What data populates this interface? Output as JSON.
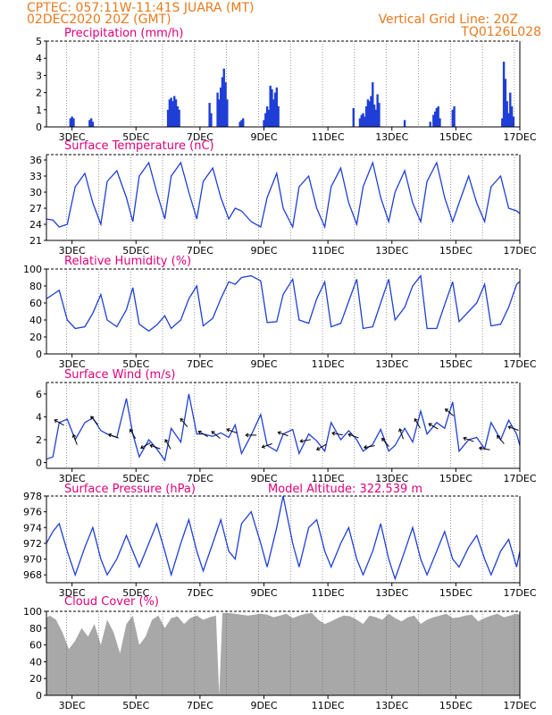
{
  "header": {
    "line1_left": "CPTEC:   057:11W-11:41S   JUARA (MT)",
    "line2_left": "02DEC2020  20Z (GMT)",
    "line1_right": "Vertical Grid Line: 20Z",
    "line2_right": "TQ0126L028"
  },
  "colors": {
    "header": "#e87a1e",
    "title": "#e0007a",
    "line": "#1f3fd6",
    "bar": "#1f3fd6",
    "cloud": "#a8a8a8",
    "arrow": "#000000"
  },
  "chart_data": [
    {
      "id": "precip",
      "type": "bar",
      "title": "Precipitation  (mm/h)",
      "x_unit": "day of Dec 2020",
      "xlim": [
        2.2,
        17.0
      ],
      "ylim": [
        0,
        5
      ],
      "yticks": [
        0,
        1,
        2,
        3,
        4,
        5
      ],
      "grid": "vertical dotted at 20Z",
      "x": [
        2.95,
        3.0,
        3.05,
        3.55,
        3.6,
        3.65,
        6.0,
        6.05,
        6.1,
        6.15,
        6.2,
        6.25,
        6.3,
        6.35,
        7.3,
        7.35,
        7.55,
        7.6,
        7.65,
        7.7,
        7.75,
        7.8,
        7.85,
        8.25,
        8.3,
        8.35,
        9.0,
        9.05,
        9.1,
        9.15,
        9.2,
        9.25,
        9.3,
        9.35,
        9.4,
        9.45,
        11.8,
        12.0,
        12.05,
        12.1,
        12.15,
        12.2,
        12.25,
        12.3,
        12.35,
        12.4,
        12.45,
        12.5,
        12.55,
        12.6,
        13.4,
        14.2,
        14.3,
        14.35,
        14.4,
        14.45,
        14.5,
        14.9,
        14.95,
        16.45,
        16.5,
        16.55,
        16.6,
        16.65,
        16.7,
        16.75,
        16.8
      ],
      "values": [
        0.5,
        0.6,
        0.5,
        0.4,
        0.5,
        0.3,
        1.0,
        1.6,
        1.7,
        1.5,
        1.8,
        1.6,
        1.2,
        1.0,
        1.4,
        0.8,
        2.0,
        1.6,
        2.3,
        2.9,
        3.4,
        2.6,
        1.6,
        0.3,
        0.4,
        0.5,
        0.4,
        0.8,
        1.2,
        1.0,
        2.4,
        2.2,
        1.6,
        2.0,
        2.3,
        1.2,
        1.1,
        0.5,
        0.7,
        0.8,
        0.6,
        1.2,
        1.6,
        1.5,
        1.8,
        2.6,
        1.3,
        1.0,
        1.9,
        1.4,
        0.4,
        0.3,
        0.7,
        0.9,
        1.1,
        1.2,
        0.5,
        1.0,
        1.2,
        0.5,
        3.8,
        2.8,
        1.5,
        0.8,
        2.0,
        1.2,
        0.6
      ]
    },
    {
      "id": "temp",
      "type": "line",
      "title": "Surface Temperature (nC)",
      "x_unit": "day of Dec 2020",
      "xlim": [
        2.2,
        17.0
      ],
      "ylim": [
        21,
        37
      ],
      "yticks": [
        21,
        24,
        27,
        30,
        33,
        36
      ],
      "x": [
        2.2,
        2.4,
        2.6,
        2.85,
        3.1,
        3.4,
        3.65,
        3.9,
        4.1,
        4.4,
        4.7,
        4.9,
        5.1,
        5.4,
        5.65,
        5.9,
        6.1,
        6.4,
        6.65,
        6.9,
        7.1,
        7.4,
        7.65,
        7.9,
        8.1,
        8.3,
        8.6,
        8.9,
        9.1,
        9.4,
        9.6,
        9.9,
        10.1,
        10.4,
        10.65,
        10.9,
        11.1,
        11.4,
        11.65,
        11.9,
        12.1,
        12.4,
        12.65,
        12.9,
        13.1,
        13.4,
        13.65,
        13.9,
        14.1,
        14.4,
        14.65,
        14.9,
        15.1,
        15.4,
        15.65,
        15.9,
        16.1,
        16.4,
        16.65,
        16.9,
        17.0
      ],
      "values": [
        25,
        24.8,
        23.5,
        24,
        31,
        33.5,
        28,
        24,
        32,
        34,
        29,
        24.5,
        33,
        35.5,
        30,
        25,
        33,
        35.5,
        30,
        25,
        32,
        34.5,
        29,
        25,
        27,
        26.5,
        24.5,
        23.5,
        29,
        33.5,
        27,
        23.5,
        31,
        33,
        27,
        23.5,
        31,
        34.5,
        28,
        24,
        31,
        35.5,
        29,
        24.5,
        30,
        34,
        28,
        24.5,
        32,
        35.5,
        29,
        24.5,
        28,
        33,
        28,
        24.5,
        31,
        33,
        27,
        26.5,
        26
      ]
    },
    {
      "id": "rh",
      "type": "line",
      "title": "Relative Humidity (%)",
      "x_unit": "day of Dec 2020",
      "xlim": [
        2.2,
        17.0
      ],
      "ylim": [
        0,
        100
      ],
      "yticks": [
        0,
        20,
        40,
        60,
        80,
        100
      ],
      "x": [
        2.2,
        2.4,
        2.6,
        2.85,
        3.1,
        3.4,
        3.65,
        3.9,
        4.1,
        4.4,
        4.7,
        4.9,
        5.1,
        5.4,
        5.65,
        5.9,
        6.1,
        6.4,
        6.65,
        6.9,
        7.1,
        7.4,
        7.65,
        7.9,
        8.1,
        8.3,
        8.6,
        8.9,
        9.1,
        9.4,
        9.6,
        9.9,
        10.1,
        10.4,
        10.65,
        10.9,
        11.1,
        11.4,
        11.65,
        11.9,
        12.1,
        12.4,
        12.65,
        12.9,
        13.1,
        13.4,
        13.65,
        13.9,
        14.1,
        14.4,
        14.65,
        14.9,
        15.1,
        15.4,
        15.65,
        15.9,
        16.1,
        16.4,
        16.65,
        16.9,
        17.0
      ],
      "values": [
        65,
        70,
        75,
        40,
        30,
        32,
        48,
        70,
        40,
        32,
        52,
        78,
        35,
        27,
        34,
        45,
        30,
        40,
        65,
        80,
        33,
        42,
        65,
        85,
        82,
        90,
        92,
        86,
        37,
        38,
        70,
        88,
        40,
        36,
        65,
        85,
        32,
        36,
        62,
        88,
        30,
        32,
        60,
        88,
        40,
        55,
        80,
        92,
        30,
        30,
        58,
        85,
        38,
        50,
        60,
        82,
        33,
        35,
        55,
        82,
        85
      ]
    },
    {
      "id": "wind",
      "type": "line",
      "title": "Surface Wind (m/s)",
      "x_unit": "day of Dec 2020",
      "xlim": [
        2.2,
        17.0
      ],
      "ylim": [
        -0.5,
        7
      ],
      "yticks": [
        0,
        2,
        4,
        6
      ],
      "x": [
        2.2,
        2.4,
        2.6,
        2.85,
        3.1,
        3.4,
        3.65,
        3.9,
        4.1,
        4.4,
        4.7,
        4.9,
        5.1,
        5.4,
        5.65,
        5.9,
        6.1,
        6.4,
        6.65,
        6.9,
        7.1,
        7.4,
        7.65,
        7.9,
        8.1,
        8.3,
        8.6,
        8.9,
        9.1,
        9.4,
        9.6,
        9.9,
        10.1,
        10.4,
        10.65,
        10.9,
        11.1,
        11.4,
        11.65,
        11.9,
        12.1,
        12.4,
        12.65,
        12.9,
        13.1,
        13.4,
        13.65,
        13.9,
        14.1,
        14.4,
        14.65,
        14.9,
        15.1,
        15.4,
        15.65,
        15.9,
        16.1,
        16.4,
        16.65,
        16.9,
        17.0
      ],
      "values": [
        0.3,
        0.5,
        3.5,
        3.8,
        2.0,
        3.5,
        3.9,
        2.8,
        2.5,
        2.2,
        5.6,
        2.5,
        0.5,
        2.0,
        1.2,
        0.2,
        3.0,
        1.8,
        6.0,
        2.5,
        2.5,
        2.3,
        2.6,
        2.2,
        3.3,
        0.8,
        2.4,
        4.2,
        1.5,
        1.0,
        2.5,
        2.9,
        0.8,
        2.5,
        1.9,
        1.0,
        3.5,
        2.0,
        2.8,
        2.0,
        1.0,
        1.6,
        2.9,
        1.0,
        1.5,
        3.0,
        1.8,
        4.5,
        2.5,
        3.5,
        3.0,
        5.3,
        1.0,
        2.0,
        2.2,
        1.2,
        3.5,
        2.0,
        3.7,
        2.5,
        1.5
      ],
      "arrow_x": [
        2.6,
        3.1,
        3.7,
        4.3,
        4.9,
        5.3,
        5.6,
        6.0,
        6.5,
        7.1,
        7.5,
        8.0,
        8.6,
        9.1,
        9.6,
        10.3,
        10.8,
        11.3,
        11.8,
        12.3,
        12.8,
        13.3,
        13.8,
        14.3,
        14.8,
        15.4,
        15.9,
        16.4,
        16.8
      ],
      "arrow_dir_deg": [
        210,
        250,
        230,
        200,
        240,
        150,
        200,
        240,
        230,
        210,
        220,
        200,
        180,
        160,
        200,
        170,
        150,
        190,
        200,
        170,
        230,
        250,
        240,
        210,
        220,
        200,
        190,
        230,
        200
      ]
    },
    {
      "id": "pres",
      "type": "line",
      "title": "Surface Pressure (hPa)",
      "annotation": "Model Altitude: 322.539  m",
      "x_unit": "day of Dec 2020",
      "xlim": [
        2.2,
        17.0
      ],
      "ylim": [
        967,
        978
      ],
      "yticks": [
        968,
        970,
        972,
        974,
        976,
        978
      ],
      "x": [
        2.2,
        2.4,
        2.6,
        2.85,
        3.1,
        3.4,
        3.65,
        3.9,
        4.1,
        4.4,
        4.7,
        4.9,
        5.1,
        5.4,
        5.65,
        5.9,
        6.1,
        6.4,
        6.65,
        6.9,
        7.1,
        7.4,
        7.65,
        7.9,
        8.1,
        8.3,
        8.6,
        8.9,
        9.1,
        9.4,
        9.6,
        9.9,
        10.1,
        10.4,
        10.65,
        10.9,
        11.1,
        11.4,
        11.65,
        11.9,
        12.1,
        12.4,
        12.65,
        12.9,
        13.1,
        13.4,
        13.65,
        13.9,
        14.1,
        14.4,
        14.65,
        14.9,
        15.1,
        15.4,
        15.65,
        15.9,
        16.1,
        16.4,
        16.65,
        16.9,
        17.0
      ],
      "values": [
        972,
        973.5,
        974.5,
        971,
        968,
        971.5,
        974,
        970,
        968,
        970,
        973,
        971,
        969,
        972,
        974.5,
        971,
        968,
        972,
        975,
        971,
        968.5,
        972,
        975,
        971,
        970,
        974.5,
        976,
        972,
        969,
        974,
        978,
        972,
        969,
        974,
        975,
        971,
        969,
        972,
        974,
        970,
        968,
        971,
        974.5,
        970,
        967.5,
        971,
        974,
        970,
        968,
        971,
        973.5,
        970,
        969,
        971.5,
        973,
        970,
        968,
        971,
        972.5,
        969,
        971
      ]
    },
    {
      "id": "cloud",
      "type": "area",
      "title": "Cloud Cover (%)",
      "x_unit": "day of Dec 2020",
      "xlim": [
        2.2,
        17.0
      ],
      "ylim": [
        0,
        100
      ],
      "yticks": [
        0,
        20,
        40,
        60,
        80,
        100
      ],
      "x": [
        2.2,
        2.3,
        2.5,
        2.7,
        2.9,
        3.1,
        3.3,
        3.5,
        3.7,
        3.9,
        4.1,
        4.3,
        4.5,
        4.7,
        4.9,
        5.1,
        5.3,
        5.5,
        5.7,
        5.9,
        6.1,
        6.3,
        6.5,
        6.7,
        6.9,
        7.1,
        7.3,
        7.5,
        7.6,
        7.7,
        7.9,
        8.1,
        8.3,
        8.5,
        8.7,
        8.9,
        9.1,
        9.3,
        9.5,
        9.7,
        9.9,
        10.1,
        10.3,
        10.5,
        10.7,
        10.9,
        11.1,
        11.3,
        11.5,
        11.7,
        11.9,
        12.1,
        12.3,
        12.5,
        12.7,
        12.9,
        13.1,
        13.3,
        13.5,
        13.7,
        13.9,
        14.1,
        14.3,
        14.5,
        14.7,
        14.9,
        15.1,
        15.3,
        15.5,
        15.7,
        15.9,
        16.1,
        16.3,
        16.5,
        16.7,
        16.9,
        17.0
      ],
      "values": [
        92,
        95,
        90,
        75,
        55,
        65,
        80,
        70,
        85,
        60,
        90,
        75,
        50,
        85,
        95,
        60,
        70,
        90,
        95,
        80,
        92,
        94,
        85,
        92,
        95,
        90,
        93,
        95,
        0,
        98,
        98,
        97,
        96,
        95,
        96,
        97,
        96,
        93,
        95,
        97,
        92,
        95,
        97,
        98,
        90,
        85,
        88,
        92,
        95,
        94,
        90,
        85,
        95,
        93,
        90,
        97,
        92,
        88,
        93,
        95,
        85,
        90,
        93,
        95,
        97,
        92,
        93,
        95,
        96,
        88,
        92,
        95,
        97,
        93,
        95,
        97,
        96
      ]
    }
  ],
  "panels": [
    {
      "title": "Precipitation  (mm/h)",
      "yticks": [
        "0",
        "1",
        "2",
        "3",
        "4",
        "5"
      ]
    },
    {
      "title": "Surface Temperature (nC)",
      "yticks": [
        "21",
        "24",
        "27",
        "30",
        "33",
        "36"
      ]
    },
    {
      "title": "Relative Humidity (%)",
      "yticks": [
        "0",
        "20",
        "40",
        "60",
        "80",
        "100"
      ]
    },
    {
      "title": "Surface Wind (m/s)",
      "yticks": [
        "0",
        "2",
        "4",
        "6"
      ]
    },
    {
      "title": "Surface Pressure (hPa)",
      "annotation": "Model Altitude: 322.539  m",
      "yticks": [
        "968",
        "970",
        "972",
        "974",
        "976",
        "978"
      ]
    },
    {
      "title": "Cloud Cover (%)",
      "yticks": [
        "0",
        "20",
        "40",
        "60",
        "80",
        "100"
      ]
    }
  ],
  "xticks": {
    "days": [
      3,
      5,
      7,
      9,
      11,
      13,
      15,
      17
    ],
    "labels": [
      "3DEC",
      "5DEC",
      "7DEC",
      "9DEC",
      "11DEC",
      "13DEC",
      "15DEC",
      "17DEC"
    ],
    "vgrid_days": [
      2.83,
      3.83,
      4.83,
      5.83,
      6.83,
      7.83,
      8.83,
      9.83,
      10.83,
      11.83,
      12.83,
      13.83,
      14.83,
      15.83,
      16.83
    ]
  }
}
